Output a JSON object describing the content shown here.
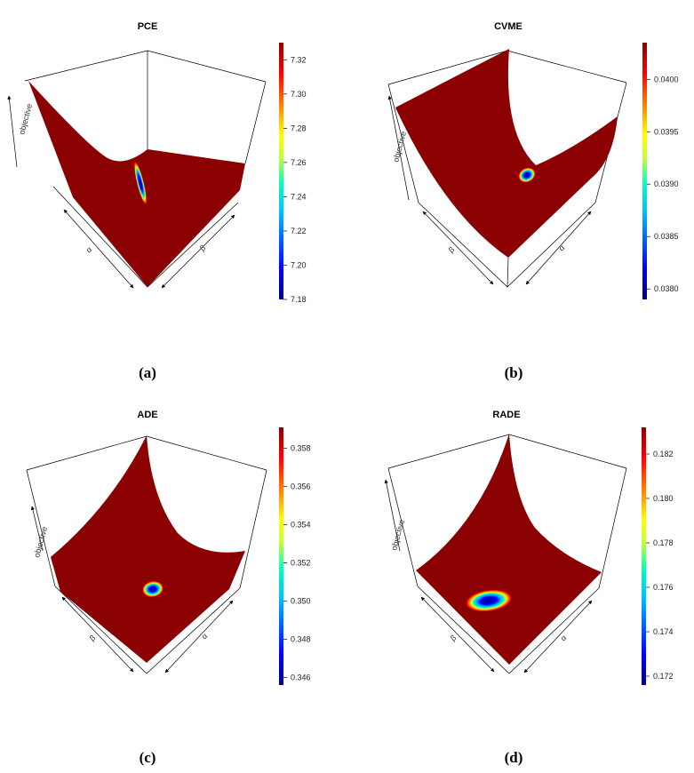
{
  "chart_data": [
    {
      "id": "a",
      "type": "surface3d",
      "title": "PCE",
      "caption": "(a)",
      "axis_labels": [
        "objective",
        "α",
        "β"
      ],
      "colorbar": {
        "range": [
          7.18,
          7.33
        ],
        "ticks": [
          7.18,
          7.2,
          7.22,
          7.24,
          7.26,
          7.28,
          7.3,
          7.32
        ],
        "tick_labels": [
          "7.18",
          "7.20",
          "7.22",
          "7.24",
          "7.26",
          "7.28",
          "7.30",
          "7.32"
        ]
      }
    },
    {
      "id": "b",
      "type": "surface3d",
      "title": "CVME",
      "caption": "(b)",
      "axis_labels": [
        "objective",
        "β",
        "α"
      ],
      "colorbar": {
        "range": [
          0.0379,
          0.04035
        ],
        "ticks": [
          0.038,
          0.0385,
          0.039,
          0.0395,
          0.04
        ],
        "tick_labels": [
          "0.0380",
          "0.0385",
          "0.0390",
          "0.0395",
          "0.0400"
        ]
      }
    },
    {
      "id": "c",
      "type": "surface3d",
      "title": "ADE",
      "caption": "(c)",
      "axis_labels": [
        "objective",
        "β",
        "α"
      ],
      "colorbar": {
        "range": [
          0.3456,
          0.3591
        ],
        "ticks": [
          0.346,
          0.348,
          0.35,
          0.352,
          0.354,
          0.356,
          0.358
        ],
        "tick_labels": [
          "0.346",
          "0.348",
          "0.350",
          "0.352",
          "0.354",
          "0.356",
          "0.358"
        ]
      }
    },
    {
      "id": "d",
      "type": "surface3d",
      "title": "RADE",
      "caption": "(d)",
      "axis_labels": [
        "objective",
        "β",
        "α"
      ],
      "colorbar": {
        "range": [
          0.1716,
          0.1832
        ],
        "ticks": [
          0.172,
          0.174,
          0.176,
          0.178,
          0.18,
          0.182
        ],
        "tick_labels": [
          "0.172",
          "0.174",
          "0.176",
          "0.178",
          "0.180",
          "0.182"
        ]
      }
    }
  ],
  "colors": {
    "surface": "#8b0000",
    "colormap": [
      "#00007f",
      "#0000ff",
      "#00bfff",
      "#00ffbf",
      "#bfff3f",
      "#ffff00",
      "#ff7f00",
      "#ff0000",
      "#8b0000"
    ]
  }
}
